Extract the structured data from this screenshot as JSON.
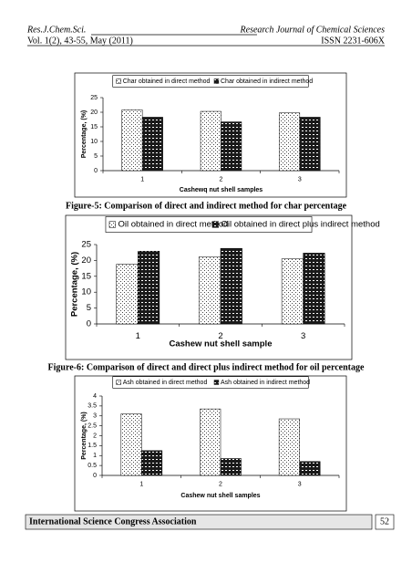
{
  "header": {
    "journal": "Res.J.Chem.Sci.",
    "journal_right": "Research Journal of Chemical Sciences",
    "volume": "Vol. 1(2), 43-55, May (2011)",
    "issn": "ISSN 2231-606X"
  },
  "chart_data": [
    {
      "type": "bar",
      "caption": "Figure-5: Comparison of direct and indirect method for char percentage",
      "x_label": "Cashewq nut shell samples",
      "y_label": "Percentage, (%)",
      "categories": [
        "1",
        "2",
        "3"
      ],
      "series": [
        {
          "name": "Char obtained in direct method",
          "color": "#444444",
          "values": [
            20.8,
            20.3,
            19.8
          ]
        },
        {
          "name": "Char obtained in indirect method",
          "color": "#1a1a1a",
          "values": [
            18.3,
            16.7,
            18.3
          ]
        }
      ],
      "ylim": [
        0,
        25
      ],
      "yticks": [
        0,
        5,
        10,
        15,
        20,
        25
      ],
      "grid": false,
      "legend": "top"
    },
    {
      "type": "bar",
      "caption": "Figure-6: Comparison of direct and direct plus indirect method for oil percentage",
      "x_label": "Cashew nut shell sample",
      "y_label": "Percentage, (%)",
      "categories": [
        "1",
        "2",
        "3"
      ],
      "series": [
        {
          "name": "Oil obtained in direct method",
          "color": "#444444",
          "values": [
            18.8,
            21.2,
            20.5
          ]
        },
        {
          "name": "Oil obtained in direct plus indirect method",
          "color": "#1a1a1a",
          "values": [
            22.9,
            23.8,
            22.3
          ]
        }
      ],
      "ylim": [
        0,
        25
      ],
      "yticks": [
        0,
        5,
        10,
        15,
        20,
        25
      ],
      "grid": false,
      "legend": "top"
    },
    {
      "type": "bar",
      "x_label": "Cashew nut shell samples",
      "y_label": "Percentage, (%)",
      "categories": [
        "1",
        "2",
        "3"
      ],
      "series": [
        {
          "name": "Ash obtained in direct method",
          "color": "#444444",
          "values": [
            3.1,
            3.35,
            2.85
          ]
        },
        {
          "name": "Ash obtained in indirect method",
          "color": "#1a1a1a",
          "values": [
            1.25,
            0.85,
            0.7
          ]
        }
      ],
      "ylim": [
        0,
        4
      ],
      "yticks": [
        0,
        0.5,
        1,
        1.5,
        2,
        2.5,
        3,
        3.5,
        4
      ],
      "grid": false,
      "legend": "top"
    }
  ],
  "footer": {
    "association": "International Science Congress Association",
    "page": "52"
  }
}
